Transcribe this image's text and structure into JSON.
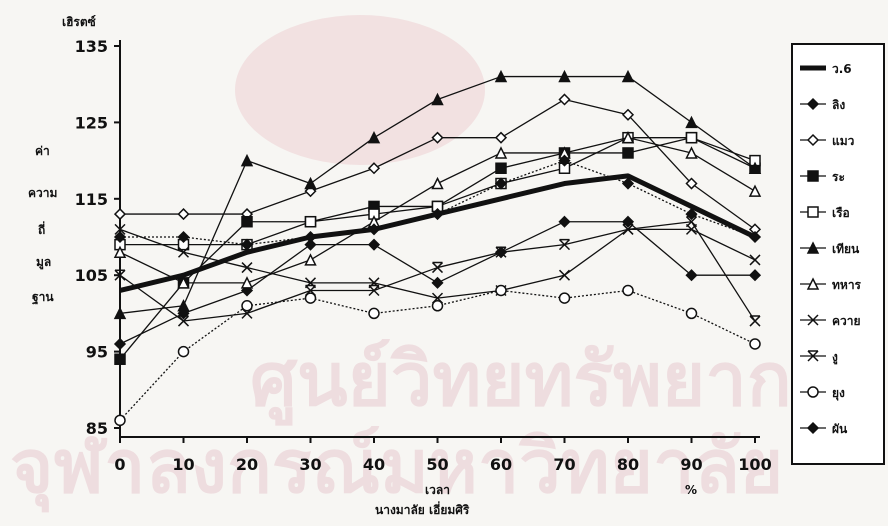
{
  "chart_data": {
    "type": "line",
    "ylabel_top": "เฮิรตซ์",
    "ylabel_vertical": [
      "ค่า",
      "ความ",
      "ถี่",
      "มูล",
      "ฐาน"
    ],
    "xlabel": "เวลา",
    "x_unit": "%",
    "author": "นางมาลัย เอี่ยมศิริ",
    "watermark_line1": "ศูนย์วิทยทรัพยากร",
    "watermark_line2": "จุฬาลงกรณ์มหาวิทยาลัย",
    "ylim": [
      85,
      135
    ],
    "yticks": [
      85,
      95,
      105,
      115,
      125,
      135
    ],
    "x": [
      0,
      10,
      20,
      30,
      40,
      50,
      60,
      70,
      80,
      90,
      100
    ],
    "xlim": [
      0,
      100
    ],
    "legend_position": "right",
    "grid": false,
    "series": [
      {
        "name": "ว.6",
        "marker": "thick",
        "values": [
          103,
          105,
          108,
          110,
          111,
          113,
          115,
          117,
          118,
          114,
          110
        ]
      },
      {
        "name": "ลิง",
        "marker": "diamond-filled",
        "values": [
          96,
          100,
          103,
          109,
          109,
          104,
          108,
          112,
          112,
          105,
          105
        ]
      },
      {
        "name": "แมว",
        "marker": "diamond-open",
        "values": [
          113,
          113,
          113,
          116,
          119,
          123,
          123,
          128,
          126,
          117,
          111
        ]
      },
      {
        "name": "ระ",
        "marker": "square-filled",
        "values": [
          94,
          104,
          112,
          112,
          114,
          114,
          119,
          121,
          121,
          123,
          119
        ]
      },
      {
        "name": "เรือ",
        "marker": "square-open",
        "values": [
          109,
          109,
          109,
          112,
          113,
          114,
          117,
          119,
          123,
          123,
          120
        ]
      },
      {
        "name": "เทียน",
        "marker": "triangle-filled",
        "values": [
          100,
          101,
          120,
          117,
          123,
          128,
          131,
          131,
          131,
          125,
          119
        ]
      },
      {
        "name": "ทหาร",
        "marker": "triangle-open",
        "values": [
          108,
          104,
          104,
          107,
          112,
          117,
          121,
          121,
          123,
          121,
          116
        ]
      },
      {
        "name": "ควาย",
        "marker": "x",
        "values": [
          111,
          108,
          106,
          104,
          104,
          102,
          103,
          105,
          111,
          111,
          107
        ]
      },
      {
        "name": "งู",
        "marker": "x-bar",
        "values": [
          105,
          99,
          100,
          103,
          103,
          106,
          108,
          109,
          111,
          112,
          99
        ]
      },
      {
        "name": "ยุง",
        "marker": "circle-open",
        "values": [
          86,
          95,
          101,
          102,
          100,
          101,
          103,
          102,
          103,
          100,
          96
        ]
      },
      {
        "name": "ผัน",
        "marker": "diamond-filled",
        "values": [
          110,
          110,
          109,
          110,
          111,
          113,
          117,
          120,
          117,
          113,
          110
        ]
      }
    ]
  }
}
